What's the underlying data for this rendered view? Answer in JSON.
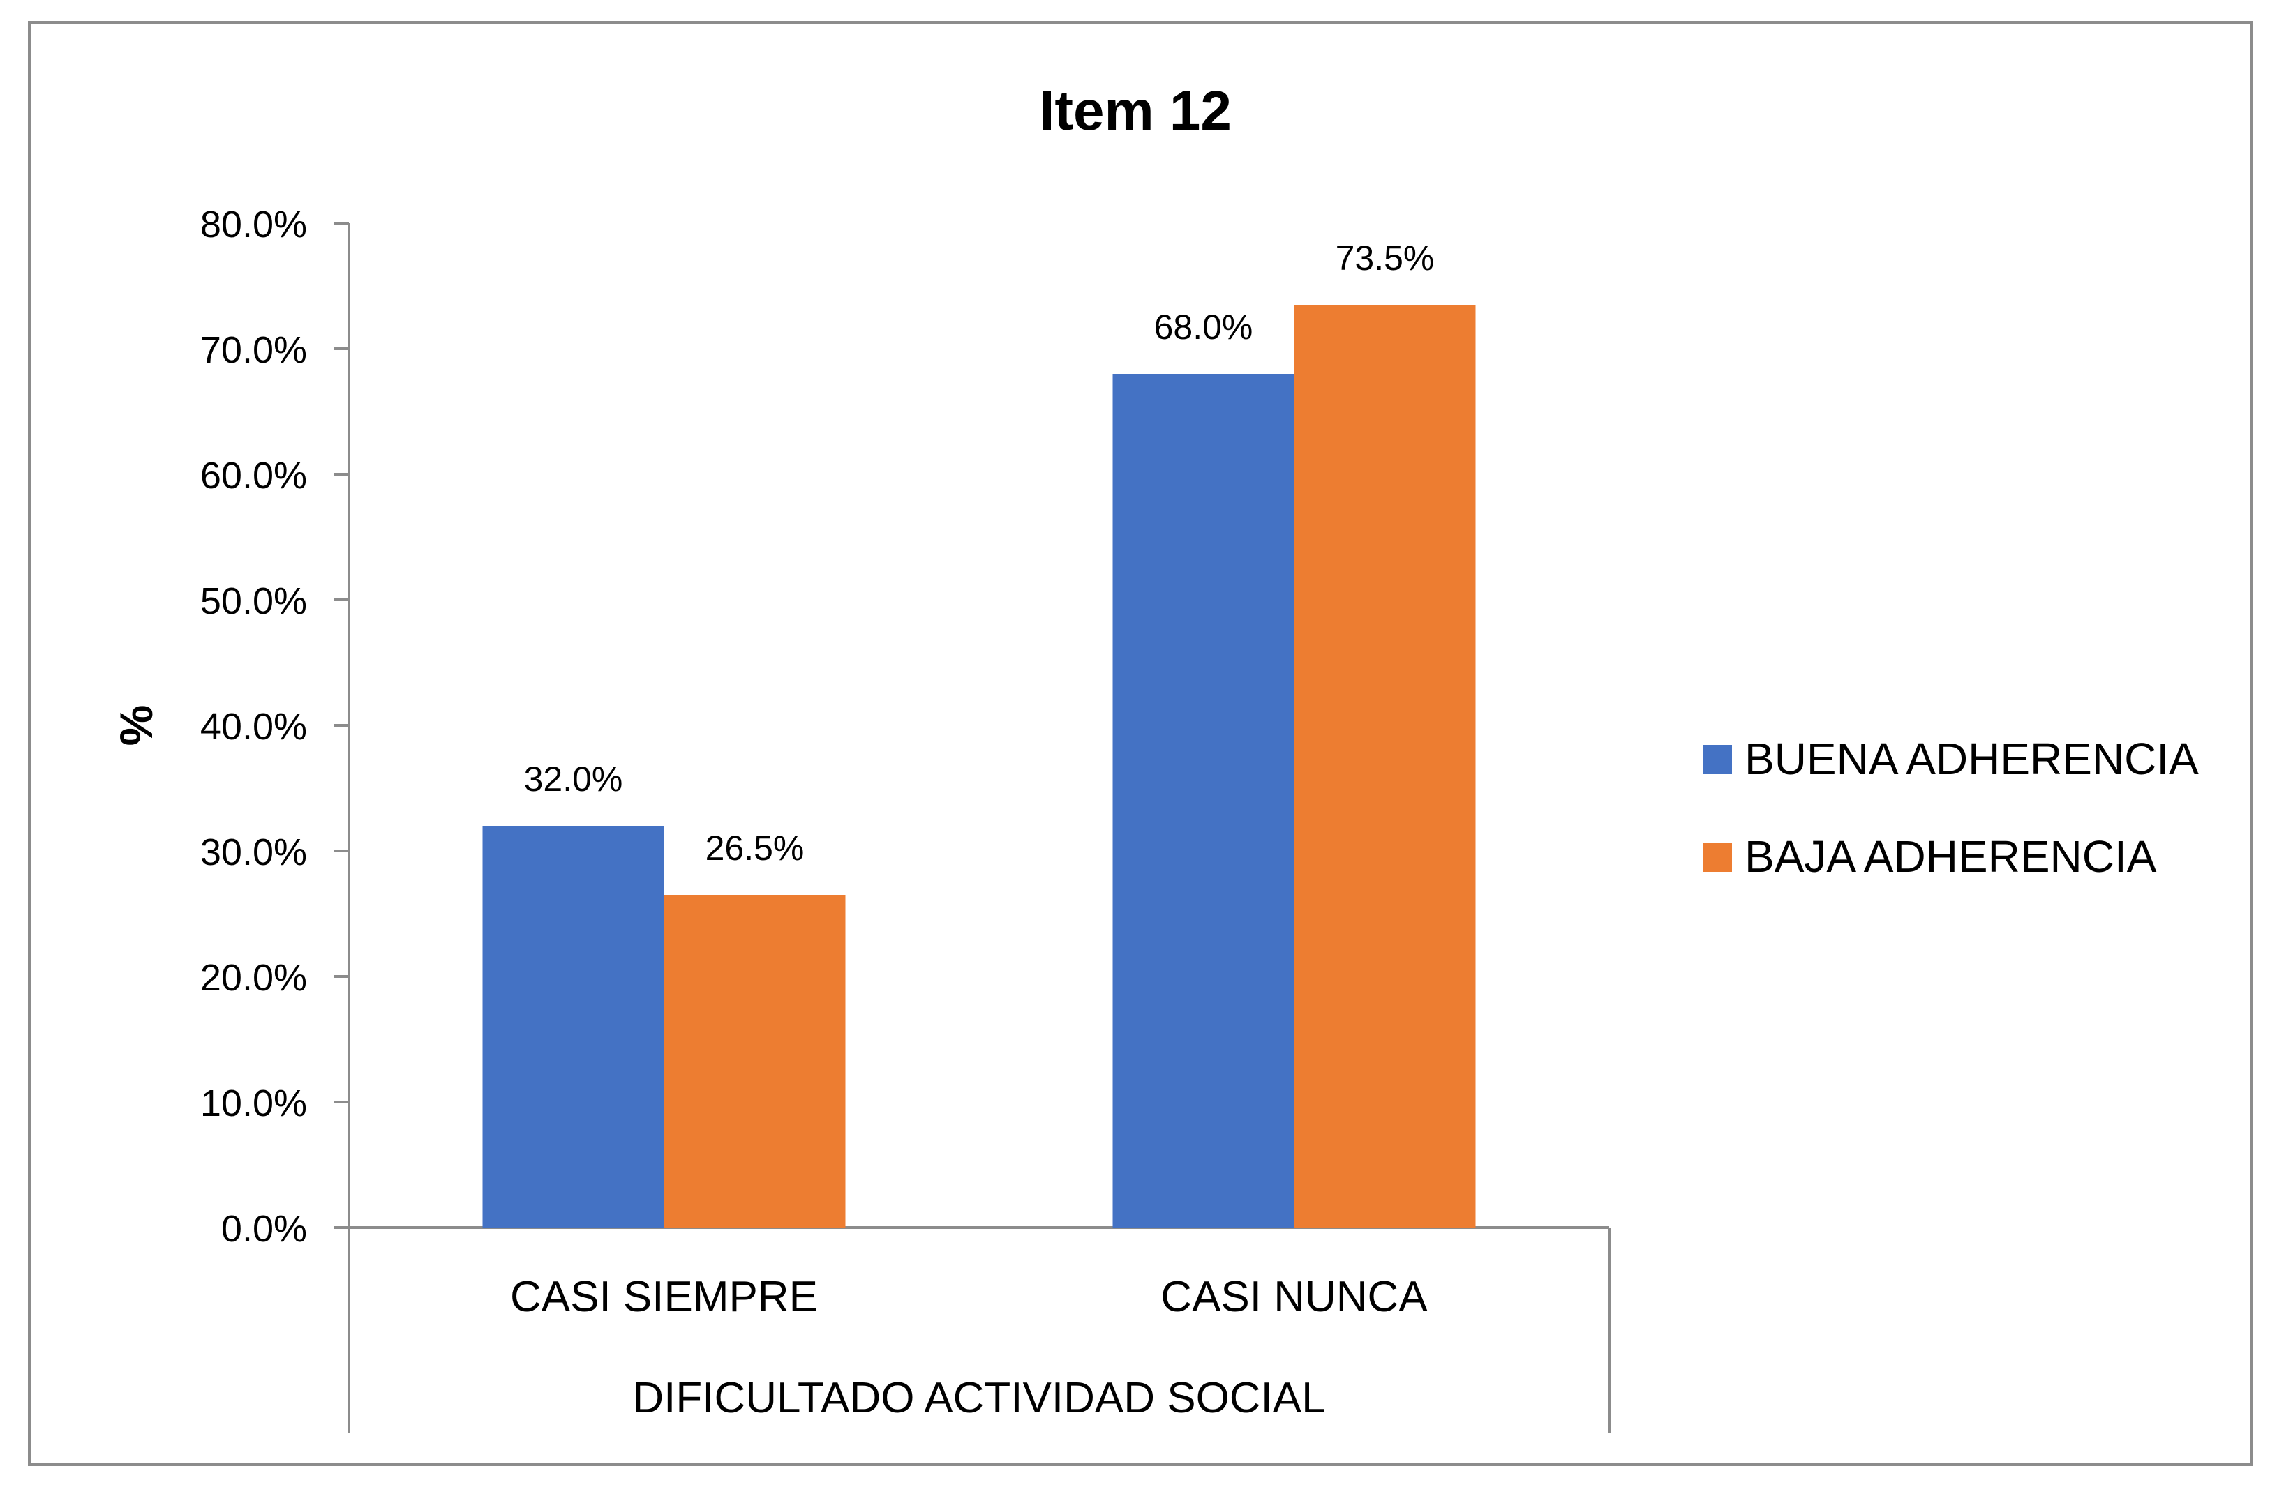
{
  "chart_data": {
    "type": "bar",
    "title": "Item 12",
    "ylabel": "%",
    "xlabel": "DIFICULTADO ACTIVIDAD SOCIAL",
    "categories": [
      "CASI SIEMPRE",
      "CASI NUNCA"
    ],
    "series": [
      {
        "name": "BUENA ADHERENCIA",
        "values": [
          32.0,
          68.0
        ],
        "labels": [
          "32.0%",
          "68.0%"
        ],
        "color": "#4472C4"
      },
      {
        "name": "BAJA ADHERENCIA",
        "values": [
          26.5,
          73.5
        ],
        "labels": [
          "26.5%",
          "73.5%"
        ],
        "color": "#ED7D31"
      }
    ],
    "yticks": [
      "0.0%",
      "10.0%",
      "20.0%",
      "30.0%",
      "40.0%",
      "50.0%",
      "60.0%",
      "70.0%",
      "80.0%"
    ],
    "ylim": [
      0,
      80
    ],
    "legend": "right",
    "grid": false
  }
}
